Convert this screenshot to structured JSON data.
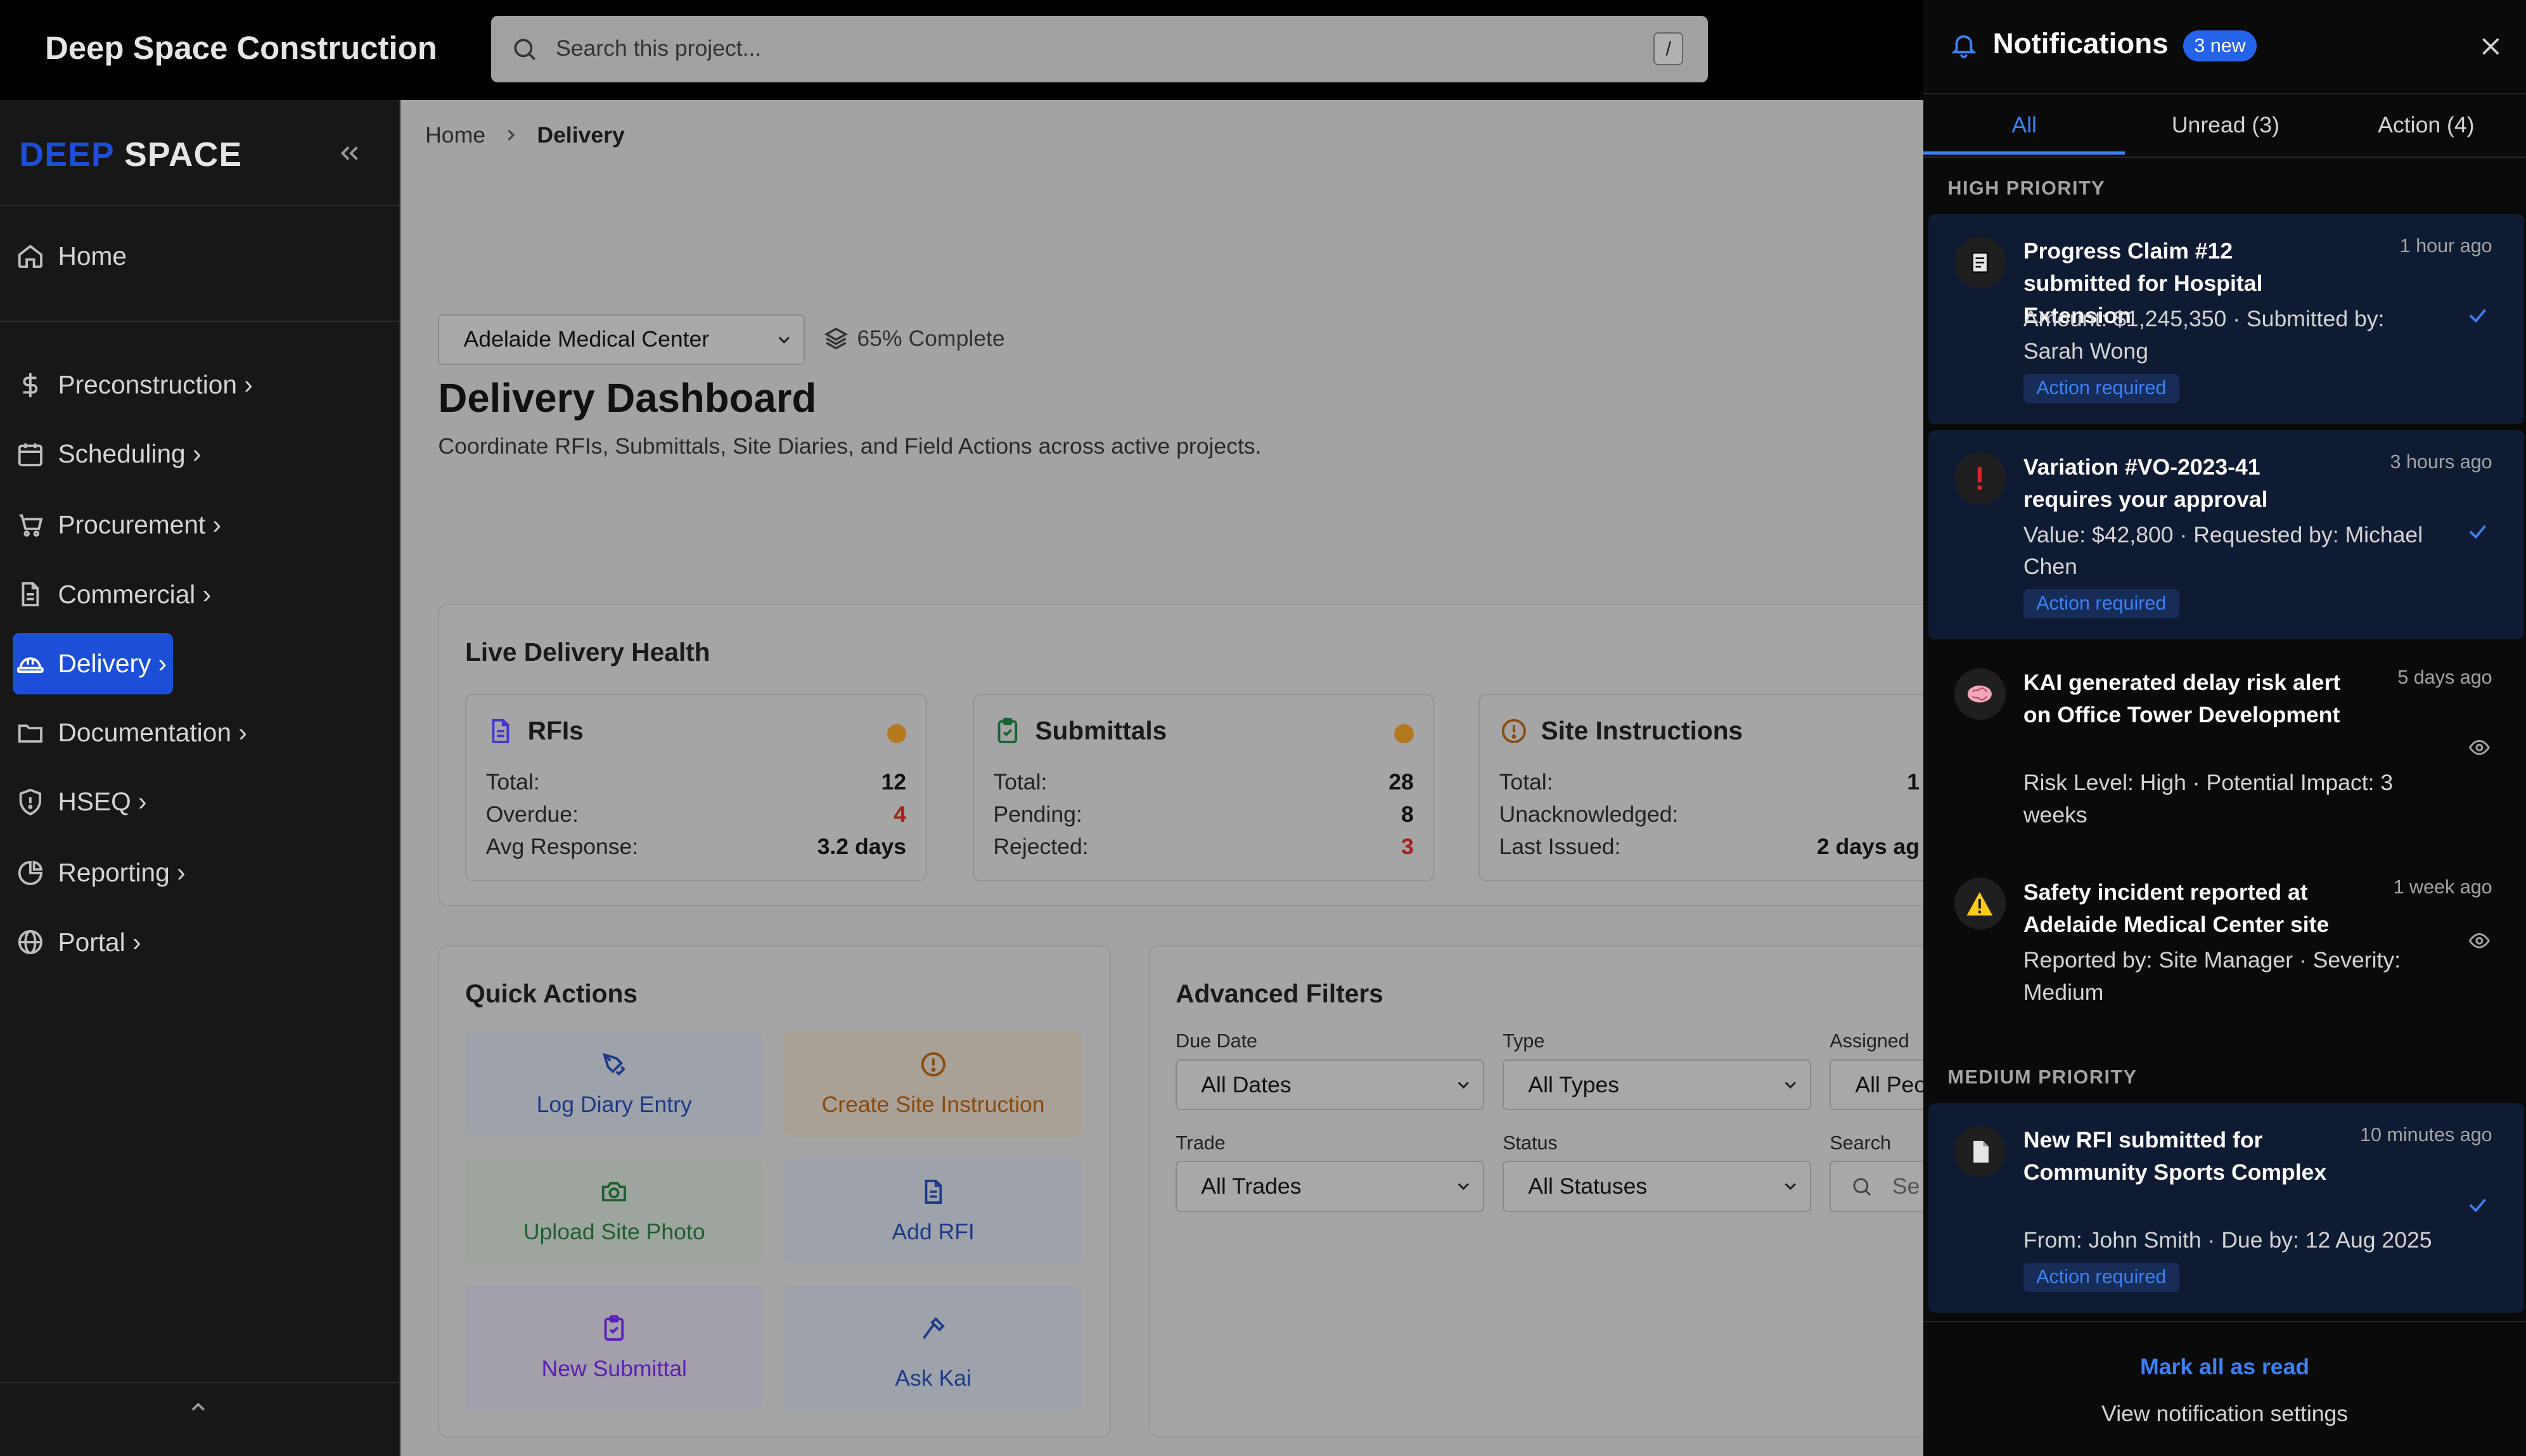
{
  "app": {
    "title": "Deep Space Construction"
  },
  "search": {
    "placeholder": "Search this project...",
    "shortcut": "/"
  },
  "sidebar": {
    "logo_part1": "DEEP",
    "logo_part2": "SPACE",
    "items": [
      {
        "label": "Home",
        "icon": "home-icon"
      },
      {
        "label": "Preconstruction",
        "icon": "dollar-icon"
      },
      {
        "label": "Scheduling",
        "icon": "calendar-icon"
      },
      {
        "label": "Procurement",
        "icon": "cart-icon"
      },
      {
        "label": "Commercial",
        "icon": "document-icon"
      },
      {
        "label": "Delivery",
        "icon": "hardhat-icon",
        "active": true
      },
      {
        "label": "Documentation",
        "icon": "folder-icon"
      },
      {
        "label": "HSEQ",
        "icon": "shield-icon"
      },
      {
        "label": "Reporting",
        "icon": "pie-chart-icon"
      },
      {
        "label": "Portal",
        "icon": "globe-icon"
      }
    ],
    "chevron": "›"
  },
  "breadcrumb": {
    "home": "Home",
    "current": "Delivery"
  },
  "project": {
    "selected": "Adelaide Medical Center",
    "progress": "65% Complete",
    "progress_value": 0.65
  },
  "page": {
    "title": "Delivery Dashboard",
    "subtitle": "Coordinate RFIs, Submittals, Site Diaries, and Field Actions across active projects."
  },
  "health": {
    "title": "Live Delivery Health",
    "cards": [
      {
        "name": "RFIs",
        "rows": [
          {
            "label": "Total:",
            "value": "12"
          },
          {
            "label": "Overdue:",
            "value": "4"
          },
          {
            "label": "Avg Response:",
            "value": "3.2 days"
          }
        ]
      },
      {
        "name": "Submittals",
        "rows": [
          {
            "label": "Total:",
            "value": "28"
          },
          {
            "label": "Pending:",
            "value": "8"
          },
          {
            "label": "Rejected:",
            "value": "3"
          }
        ]
      },
      {
        "name": "Site Instructions",
        "rows": [
          {
            "label": "Total:",
            "value": "1"
          },
          {
            "label": "Unacknowledged:",
            "value": ""
          },
          {
            "label": "Last Issued:",
            "value": "2 days ag"
          }
        ]
      }
    ]
  },
  "quick_actions": {
    "title": "Quick Actions",
    "items": [
      {
        "label": "Log Diary Entry"
      },
      {
        "label": "Create Site Instruction"
      },
      {
        "label": "Upload Site Photo"
      },
      {
        "label": "Add RFI"
      },
      {
        "label": "New Submittal"
      },
      {
        "label": "Ask Kai"
      }
    ]
  },
  "filters": {
    "title": "Advanced Filters",
    "due_date": {
      "label": "Due Date",
      "value": "All Dates"
    },
    "type": {
      "label": "Type",
      "value": "All Types"
    },
    "assigned": {
      "label": "Assigned",
      "value": "All Peo"
    },
    "trade": {
      "label": "Trade",
      "value": "All Trades"
    },
    "status": {
      "label": "Status",
      "value": "All Statuses"
    },
    "search": {
      "label": "Search",
      "placeholder": "Se"
    }
  },
  "notifications": {
    "title": "Notifications",
    "badge": "3 new",
    "tabs": {
      "all": "All",
      "unread": "Unread (3)",
      "action": "Action (4)"
    },
    "high_priority_label": "HIGH PRIORITY",
    "medium_priority_label": "MEDIUM PRIORITY",
    "action_label": "Action required",
    "items": [
      {
        "title": "Progress Claim #12 submitted for Hospital Extension",
        "time": "1 hour ago",
        "body": "Amount: $1,245,350 · Submitted by: Sarah Wong",
        "icon": "receipt-icon",
        "action": true,
        "mark": "check-icon"
      },
      {
        "title": "Variation #VO-2023-41 requires your approval",
        "time": "3 hours ago",
        "body": "Value: $42,800 · Requested by: Michael Chen",
        "icon": "exclamation-icon",
        "action": true,
        "mark": "check-icon"
      },
      {
        "title": "KAI generated delay risk alert on Office Tower Development",
        "time": "5 days ago",
        "body": "Risk Level: High · Potential Impact: 3 weeks",
        "icon": "brain-icon",
        "action": false,
        "mark": "eye-icon"
      },
      {
        "title": "Safety incident reported at Adelaide Medical Center site",
        "time": "1 week ago",
        "body": "Reported by: Site Manager · Severity: Medium",
        "icon": "warning-icon",
        "action": false,
        "mark": "eye-icon"
      },
      {
        "title": "New RFI submitted for Community Sports Complex",
        "time": "10 minutes ago",
        "body": "From: John Smith · Due by: 12 Aug 2025",
        "icon": "file-icon",
        "action": true,
        "mark": "check-icon"
      }
    ],
    "footer": {
      "mark_all": "Mark all as read",
      "settings": "View notification settings"
    }
  },
  "colors": {
    "accent": "#1d4ed8",
    "link": "#3b82f6",
    "warning_dot": "#b4791f",
    "danger": "#a52020"
  }
}
